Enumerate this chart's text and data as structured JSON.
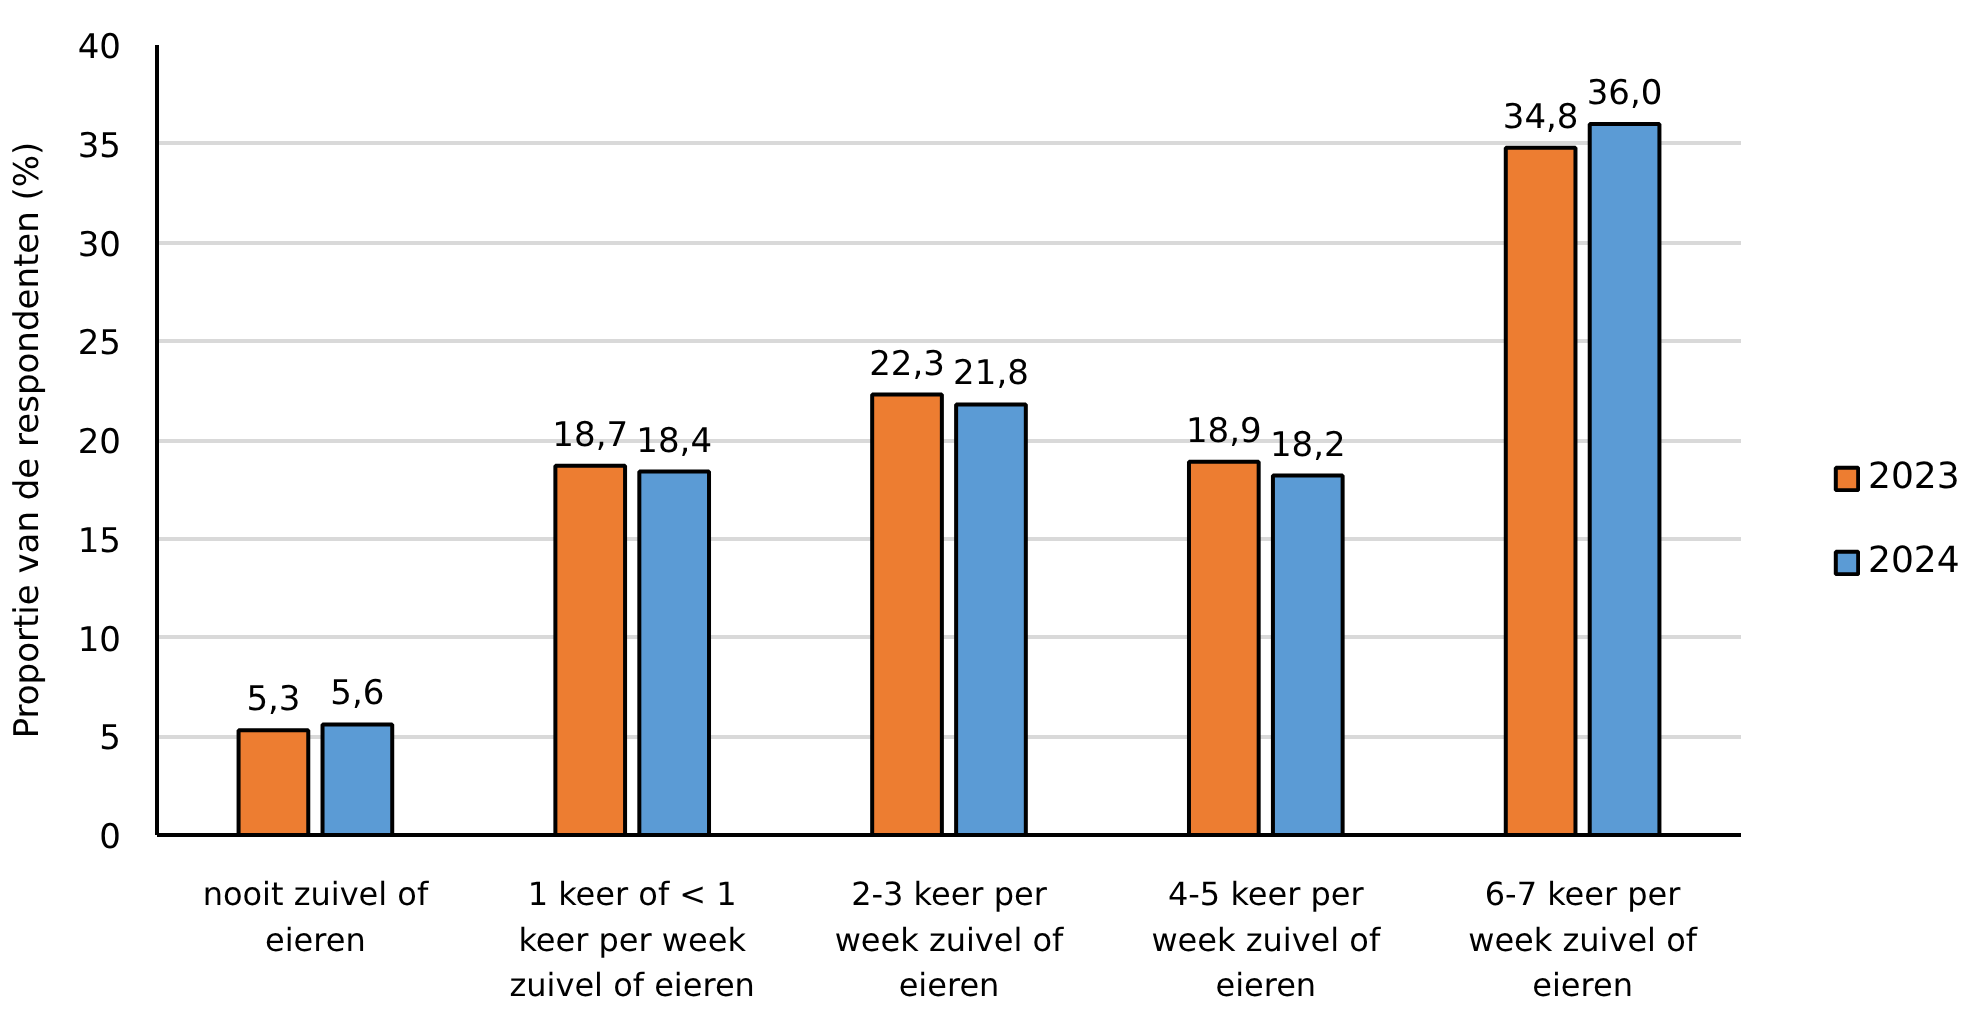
{
  "chart_data": {
    "type": "bar",
    "categories": [
      "nooit zuivel of eieren",
      "1 keer of < 1 keer per week zuivel of eieren",
      "2-3 keer per week zuivel of eieren",
      "4-5 keer per week zuivel of eieren",
      "6-7 keer per week zuivel of eieren"
    ],
    "series": [
      {
        "name": "2023",
        "color": "#ed7d31",
        "values": [
          5.3,
          18.7,
          22.3,
          18.9,
          34.8
        ],
        "value_labels": [
          "5,3",
          "18,7",
          "22,3",
          "18,9",
          "34,8"
        ]
      },
      {
        "name": "2024",
        "color": "#5b9bd5",
        "values": [
          5.6,
          18.4,
          21.8,
          18.2,
          36.0
        ],
        "value_labels": [
          "5,6",
          "18,4",
          "21,8",
          "18,2",
          "36,0"
        ]
      }
    ],
    "ylabel": "Proportie van de respondenten (%)",
    "ylim": [
      0,
      40
    ],
    "yticks": [
      0,
      5,
      10,
      15,
      20,
      25,
      30,
      35,
      40
    ],
    "grid": "y",
    "legend": "right"
  }
}
